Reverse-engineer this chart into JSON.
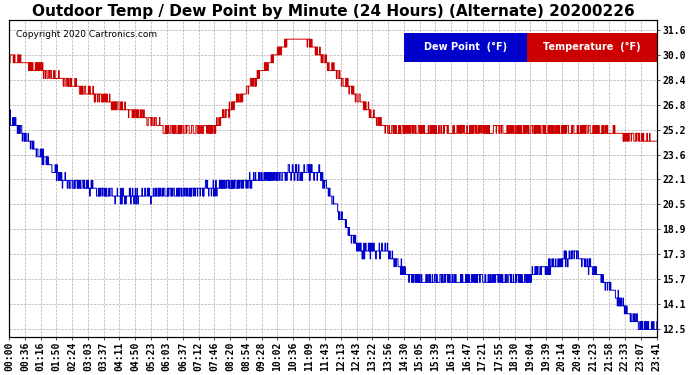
{
  "title": "Outdoor Temp / Dew Point by Minute (24 Hours) (Alternate) 20200226",
  "copyright": "Copyright 2020 Cartronics.com",
  "y_ticks": [
    12.5,
    14.1,
    15.7,
    17.3,
    18.9,
    20.5,
    22.1,
    23.6,
    25.2,
    26.8,
    28.4,
    30.0,
    31.6
  ],
  "ylim": [
    12.0,
    32.2
  ],
  "temp_color": "#cc0000",
  "dew_color": "#0000cc",
  "bg_color": "#ffffff",
  "plot_bg": "#ffffff",
  "grid_color": "#999999",
  "legend_dew_bg": "#0000cc",
  "legend_temp_bg": "#cc0000",
  "legend_text_color": "#ffffff",
  "title_fontsize": 11,
  "copyright_fontsize": 6.5,
  "tick_fontsize": 7,
  "legend_fontsize": 7,
  "x_tick_labels": [
    "00:00",
    "00:36",
    "01:16",
    "01:50",
    "02:24",
    "03:03",
    "03:37",
    "04:11",
    "04:50",
    "05:23",
    "06:03",
    "06:37",
    "07:12",
    "07:46",
    "08:20",
    "08:54",
    "09:28",
    "10:02",
    "10:36",
    "11:09",
    "11:43",
    "12:13",
    "12:43",
    "13:22",
    "13:56",
    "14:30",
    "15:05",
    "15:39",
    "16:13",
    "16:47",
    "17:21",
    "17:55",
    "18:30",
    "19:04",
    "19:39",
    "20:14",
    "20:49",
    "21:23",
    "21:58",
    "22:33",
    "23:07",
    "23:41"
  ]
}
